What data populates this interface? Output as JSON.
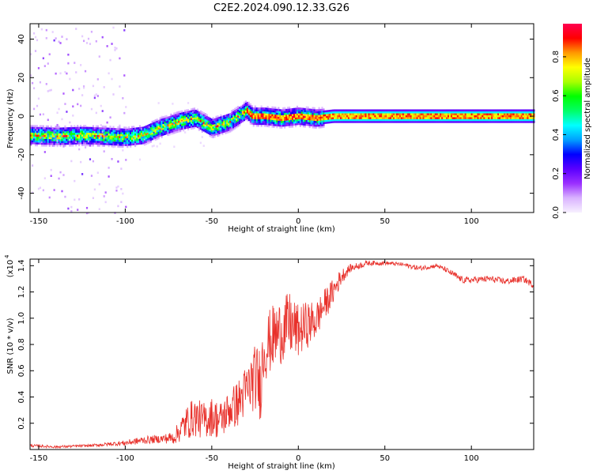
{
  "figure": {
    "title": "C2E2.2024.090.12.33.G26"
  },
  "chart_data": [
    {
      "type": "heatmap",
      "xlabel": "Height of straight line (km)",
      "ylabel": "Frequency (Hz)",
      "xlim": [
        -155,
        136
      ],
      "ylim": [
        -50,
        48
      ],
      "xticks": [
        -150,
        -100,
        -50,
        0,
        50,
        100
      ],
      "yticks": [
        -40,
        -20,
        0,
        20,
        40
      ],
      "grid": false,
      "colorbar": {
        "label": "Normalized spectral amplitude",
        "range": [
          0,
          0.97
        ],
        "ticks": [
          0.0,
          0.2,
          0.4,
          0.6,
          0.8
        ],
        "colormap": [
          "#f7f0ff",
          "#d9b3ff",
          "#9b30ff",
          "#5a00ff",
          "#0000ff",
          "#00a0ff",
          "#00ffff",
          "#00ff66",
          "#00ff00",
          "#aaff00",
          "#ffff00",
          "#ff9900",
          "#ff0000",
          "#ff0050"
        ]
      },
      "center_frequency_trace": {
        "x": [
          -155,
          -140,
          -125,
          -110,
          -100,
          -90,
          -80,
          -70,
          -60,
          -50,
          -40,
          -30,
          -27,
          -20,
          -10,
          0,
          10,
          20,
          40,
          60,
          80,
          100,
          120,
          136
        ],
        "y": [
          -10,
          -10.5,
          -10,
          -10.5,
          -11,
          -10,
          -6,
          -3,
          -1,
          -6,
          -3,
          3,
          0,
          0,
          -1,
          0,
          -1,
          0,
          0,
          0,
          0,
          0,
          0,
          0
        ]
      }
    },
    {
      "type": "line",
      "xlabel": "Height of straight line (km)",
      "ylabel": "SNR (10 * v/v)",
      "ylabel_scale_note": "(x10",
      "ylabel_scale_exp": "4",
      "xlim": [
        -155,
        136
      ],
      "ylim": [
        0,
        1.45
      ],
      "xticks": [
        -150,
        -100,
        -50,
        0,
        50,
        100
      ],
      "yticks": [
        0.2,
        0.4,
        0.6,
        0.8,
        1.0,
        1.2,
        1.4
      ],
      "color": "#e8302a",
      "series": [
        {
          "x": [
            -155,
            -140,
            -120,
            -100,
            -90,
            -80,
            -72,
            -65,
            -60,
            -55,
            -50,
            -45,
            -40,
            -35,
            -30,
            -25,
            -22,
            -20,
            -15,
            -10,
            -5,
            0,
            5,
            10,
            15,
            20,
            25,
            30,
            40,
            50,
            60,
            70,
            80,
            85,
            90,
            95,
            100,
            110,
            120,
            130,
            136
          ],
          "y": [
            0.03,
            0.02,
            0.03,
            0.05,
            0.07,
            0.08,
            0.09,
            0.2,
            0.25,
            0.22,
            0.25,
            0.22,
            0.3,
            0.35,
            0.45,
            0.55,
            0.5,
            0.75,
            0.85,
            0.9,
            0.95,
            0.9,
            0.95,
            0.98,
            1.1,
            1.2,
            1.32,
            1.38,
            1.42,
            1.42,
            1.41,
            1.38,
            1.4,
            1.37,
            1.33,
            1.29,
            1.29,
            1.3,
            1.28,
            1.3,
            1.25
          ],
          "noise": [
            0.01,
            0.01,
            0.01,
            0.02,
            0.03,
            0.03,
            0.05,
            0.13,
            0.15,
            0.14,
            0.15,
            0.15,
            0.15,
            0.18,
            0.2,
            0.25,
            0.3,
            0.25,
            0.25,
            0.25,
            0.25,
            0.2,
            0.18,
            0.15,
            0.12,
            0.1,
            0.06,
            0.03,
            0.02,
            0.015,
            0.015,
            0.02,
            0.015,
            0.02,
            0.025,
            0.025,
            0.025,
            0.025,
            0.025,
            0.025,
            0.025
          ]
        }
      ]
    }
  ]
}
